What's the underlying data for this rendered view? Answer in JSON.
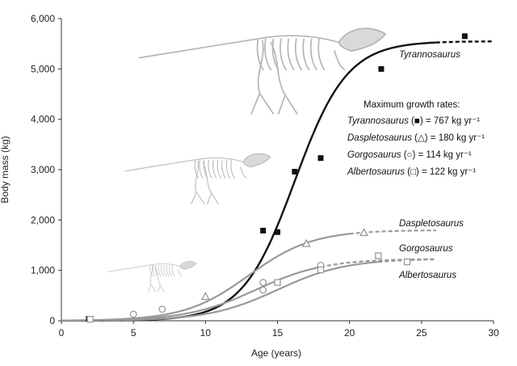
{
  "chart_data": {
    "type": "scatter",
    "xlabel": "Age (years)",
    "ylabel": "Body mass (kg)",
    "xlim": [
      0,
      30
    ],
    "ylim": [
      0,
      6000
    ],
    "x_ticks": [
      "0",
      "5",
      "10",
      "15",
      "20",
      "25",
      "30"
    ],
    "y_ticks": [
      "0",
      "1,000",
      "2,000",
      "3,000",
      "4,000",
      "5,000",
      "6,000"
    ],
    "grid": false,
    "annotation": {
      "heading": "Maximum growth rates:",
      "rows": [
        {
          "name": "Tyrannosaurus",
          "symbol": "■",
          "rate": "= 767 kg yr⁻¹"
        },
        {
          "name": "Daspletosaurus",
          "symbol": "△",
          "rate": "= 180 kg yr⁻¹"
        },
        {
          "name": "Gorgosaurus",
          "symbol": "○",
          "rate": "= 114 kg yr⁻¹"
        },
        {
          "name": "Albertosaurus",
          "symbol": "□",
          "rate": "= 122 kg yr⁻¹"
        }
      ]
    },
    "series": [
      {
        "name": "Tyrannosaurus",
        "marker": "filled-square",
        "color": "#111111",
        "points": [
          [
            1.9,
            40
          ],
          [
            14,
            1790
          ],
          [
            15,
            1760
          ],
          [
            16.2,
            2960
          ],
          [
            18,
            3230
          ],
          [
            22.2,
            5000
          ],
          [
            28,
            5650
          ]
        ],
        "curve": {
          "asymptote": 5550,
          "midpoint": 16.2,
          "k": 0.55,
          "solid_to": 26
        }
      },
      {
        "name": "Daspletosaurus",
        "marker": "open-triangle",
        "color": "#999999",
        "points": [
          [
            10,
            480
          ],
          [
            17,
            1530
          ],
          [
            21,
            1750
          ]
        ],
        "curve": {
          "asymptote": 1800,
          "midpoint": 13.0,
          "k": 0.45,
          "solid_to": 20
        }
      },
      {
        "name": "Gorgosaurus",
        "marker": "open-circle",
        "color": "#999999",
        "points": [
          [
            5,
            130
          ],
          [
            7,
            230
          ],
          [
            14,
            760
          ],
          [
            14,
            610
          ],
          [
            18,
            1100
          ]
        ],
        "curve": {
          "asymptote": 1230,
          "midpoint": 13.5,
          "k": 0.42,
          "solid_to": 18
        }
      },
      {
        "name": "Albertosaurus",
        "marker": "open-square",
        "color": "#999999",
        "points": [
          [
            2,
            30
          ],
          [
            15,
            760
          ],
          [
            18,
            1010
          ],
          [
            22,
            1290
          ],
          [
            24,
            1170
          ]
        ],
        "curve": {
          "asymptote": 1230,
          "midpoint": 15.0,
          "k": 0.42,
          "solid_to": 22
        }
      }
    ],
    "curve_labels": [
      {
        "series": "Tyrannosaurus",
        "text": "Tyrannosaurus"
      },
      {
        "series": "Daspletosaurus",
        "text": "Daspletosaurus"
      },
      {
        "series": "Gorgosaurus",
        "text": "Gorgosaurus"
      },
      {
        "series": "Albertosaurus",
        "text": "Albertosaurus"
      }
    ]
  }
}
